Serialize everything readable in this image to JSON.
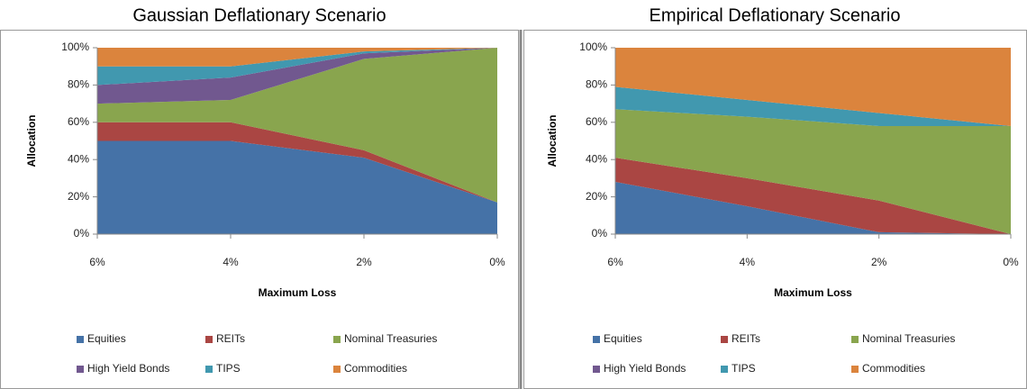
{
  "chart_data": [
    {
      "type": "area",
      "stacked": true,
      "title": "Gaussian Deflationary Scenario",
      "xlabel": "Maximum Loss",
      "ylabel": "Allocation",
      "x": [
        6,
        4,
        2,
        0
      ],
      "xlim": [
        6,
        0
      ],
      "xticks": [
        {
          "value": 6,
          "label": "6%"
        },
        {
          "value": 4,
          "label": "4%"
        },
        {
          "value": 2,
          "label": "2%"
        },
        {
          "value": 0,
          "label": "0%"
        }
      ],
      "ylim": [
        0,
        100
      ],
      "yticks": [
        {
          "value": 0,
          "label": "0%"
        },
        {
          "value": 20,
          "label": "20%"
        },
        {
          "value": 40,
          "label": "40%"
        },
        {
          "value": 60,
          "label": "60%"
        },
        {
          "value": 80,
          "label": "80%"
        },
        {
          "value": 100,
          "label": "100%"
        }
      ],
      "grid": false,
      "series": [
        {
          "name": "Equities",
          "color": "#4572a7",
          "values": [
            50,
            50,
            41,
            17
          ]
        },
        {
          "name": "REITs",
          "color": "#aa4643",
          "values": [
            10,
            10,
            4,
            0
          ]
        },
        {
          "name": "Nominal Treasuries",
          "color": "#89a54e",
          "values": [
            10,
            12,
            49,
            83
          ]
        },
        {
          "name": "High Yield Bonds",
          "color": "#71588f",
          "values": [
            10,
            12,
            3,
            0
          ]
        },
        {
          "name": "TIPS",
          "color": "#4198af",
          "values": [
            10,
            6,
            1,
            0
          ]
        },
        {
          "name": "Commodities",
          "color": "#db843d",
          "values": [
            10,
            10,
            2,
            0
          ]
        }
      ]
    },
    {
      "type": "area",
      "stacked": true,
      "title": "Empirical Deflationary Scenario",
      "xlabel": "Maximum Loss",
      "ylabel": "Allocation",
      "x": [
        6,
        4,
        2,
        0
      ],
      "xlim": [
        6,
        0
      ],
      "xticks": [
        {
          "value": 6,
          "label": "6%"
        },
        {
          "value": 4,
          "label": "4%"
        },
        {
          "value": 2,
          "label": "2%"
        },
        {
          "value": 0,
          "label": "0%"
        }
      ],
      "ylim": [
        0,
        100
      ],
      "yticks": [
        {
          "value": 0,
          "label": "0%"
        },
        {
          "value": 20,
          "label": "20%"
        },
        {
          "value": 40,
          "label": "40%"
        },
        {
          "value": 60,
          "label": "60%"
        },
        {
          "value": 80,
          "label": "80%"
        },
        {
          "value": 100,
          "label": "100%"
        }
      ],
      "grid": false,
      "series": [
        {
          "name": "Equities",
          "color": "#4572a7",
          "values": [
            28,
            15,
            1,
            0
          ]
        },
        {
          "name": "REITs",
          "color": "#aa4643",
          "values": [
            13,
            15,
            17,
            0
          ]
        },
        {
          "name": "Nominal Treasuries",
          "color": "#89a54e",
          "values": [
            26,
            33,
            40,
            58
          ]
        },
        {
          "name": "High Yield Bonds",
          "color": "#71588f",
          "values": [
            0,
            0,
            0,
            0
          ]
        },
        {
          "name": "TIPS",
          "color": "#4198af",
          "values": [
            12,
            9,
            7,
            0
          ]
        },
        {
          "name": "Commodities",
          "color": "#db843d",
          "values": [
            21,
            28,
            35,
            42
          ]
        }
      ]
    }
  ]
}
